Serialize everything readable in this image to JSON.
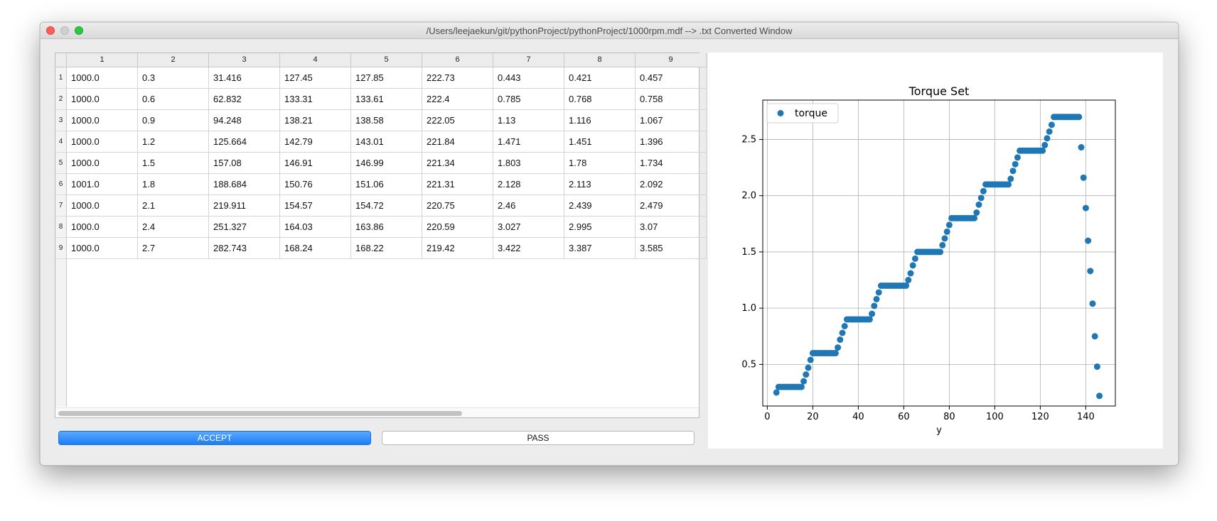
{
  "window": {
    "title": "/Users/leejaekun/git/pythonProject/pythonProject/1000rpm.mdf --> .txt Converted Window"
  },
  "table": {
    "columns": [
      "1",
      "2",
      "3",
      "4",
      "5",
      "6",
      "7",
      "8",
      "9"
    ],
    "rows": [
      {
        "label": "1",
        "cells": [
          "1000.0",
          "0.3",
          "31.416",
          "127.45",
          "127.85",
          "222.73",
          "0.443",
          "0.421",
          "0.457"
        ]
      },
      {
        "label": "2",
        "cells": [
          "1000.0",
          "0.6",
          "62.832",
          "133.31",
          "133.61",
          "222.4",
          "0.785",
          "0.768",
          "0.758"
        ]
      },
      {
        "label": "3",
        "cells": [
          "1000.0",
          "0.9",
          "94.248",
          "138.21",
          "138.58",
          "222.05",
          "1.13",
          "1.116",
          "1.067"
        ]
      },
      {
        "label": "4",
        "cells": [
          "1000.0",
          "1.2",
          "125.664",
          "142.79",
          "143.01",
          "221.84",
          "1.471",
          "1.451",
          "1.396"
        ]
      },
      {
        "label": "5",
        "cells": [
          "1000.0",
          "1.5",
          "157.08",
          "146.91",
          "146.99",
          "221.34",
          "1.803",
          "1.78",
          "1.734"
        ]
      },
      {
        "label": "6",
        "cells": [
          "1001.0",
          "1.8",
          "188.684",
          "150.76",
          "151.06",
          "221.31",
          "2.128",
          "2.113",
          "2.092"
        ]
      },
      {
        "label": "7",
        "cells": [
          "1000.0",
          "2.1",
          "219.911",
          "154.57",
          "154.72",
          "220.75",
          "2.46",
          "2.439",
          "2.479"
        ]
      },
      {
        "label": "8",
        "cells": [
          "1000.0",
          "2.4",
          "251.327",
          "164.03",
          "163.86",
          "220.59",
          "3.027",
          "2.995",
          "3.07"
        ]
      },
      {
        "label": "9",
        "cells": [
          "1000.0",
          "2.7",
          "282.743",
          "168.24",
          "168.22",
          "219.42",
          "3.422",
          "3.387",
          "3.585"
        ]
      }
    ]
  },
  "buttons": {
    "accept": "ACCEPT",
    "pass": "PASS"
  },
  "colors": {
    "accent": "#1a7ef5",
    "marker": "#1f77b4"
  },
  "chart_data": {
    "type": "scatter",
    "title": "Torque Set",
    "xlabel": "y",
    "ylabel": "",
    "xlim": [
      -2,
      153
    ],
    "ylim": [
      0.13,
      2.85
    ],
    "xticks": [
      0,
      20,
      40,
      60,
      80,
      100,
      120,
      140
    ],
    "yticks": [
      0.5,
      1.0,
      1.5,
      2.0,
      2.5
    ],
    "ytick_labels": [
      "0.5",
      "1.0",
      "1.5",
      "2.0",
      "2.5"
    ],
    "grid": true,
    "legend_position": "upper-left",
    "series": [
      {
        "name": "torque",
        "ramps": [
          {
            "x": [
              16,
              17,
              18,
              19
            ],
            "y": [
              0.35,
              0.41,
              0.47,
              0.54
            ]
          },
          {
            "x": [
              31,
              32,
              33,
              34
            ],
            "y": [
              0.65,
              0.72,
              0.78,
              0.84
            ]
          },
          {
            "x": [
              46,
              47,
              48,
              49
            ],
            "y": [
              0.95,
              1.02,
              1.08,
              1.14
            ]
          },
          {
            "x": [
              62,
              63,
              64,
              65
            ],
            "y": [
              1.25,
              1.31,
              1.38,
              1.44
            ]
          },
          {
            "x": [
              77,
              78,
              79,
              80
            ],
            "y": [
              1.56,
              1.62,
              1.68,
              1.74
            ]
          },
          {
            "x": [
              92,
              93,
              94,
              95
            ],
            "y": [
              1.85,
              1.92,
              1.98,
              2.04
            ]
          },
          {
            "x": [
              107,
              108,
              109,
              110
            ],
            "y": [
              2.15,
              2.22,
              2.28,
              2.34
            ]
          },
          {
            "x": [
              122,
              123,
              124,
              125
            ],
            "y": [
              2.45,
              2.51,
              2.57,
              2.63
            ]
          }
        ],
        "plateaus": [
          {
            "x_start": 5,
            "x_end": 15,
            "y": 0.3
          },
          {
            "x_start": 20,
            "x_end": 30,
            "y": 0.6
          },
          {
            "x_start": 35,
            "x_end": 45,
            "y": 0.9
          },
          {
            "x_start": 50,
            "x_end": 61,
            "y": 1.2
          },
          {
            "x_start": 66,
            "x_end": 76,
            "y": 1.5
          },
          {
            "x_start": 81,
            "x_end": 91,
            "y": 1.8
          },
          {
            "x_start": 96,
            "x_end": 106,
            "y": 2.1
          },
          {
            "x_start": 111,
            "x_end": 121,
            "y": 2.4
          },
          {
            "x_start": 126,
            "x_end": 137,
            "y": 2.7
          }
        ],
        "extra_points": [
          {
            "x": 4,
            "y": 0.25
          },
          {
            "x": 138,
            "y": 2.43
          },
          {
            "x": 139,
            "y": 2.16
          },
          {
            "x": 140,
            "y": 1.89
          },
          {
            "x": 141,
            "y": 1.6
          },
          {
            "x": 142,
            "y": 1.33
          },
          {
            "x": 143,
            "y": 1.04
          },
          {
            "x": 144,
            "y": 0.75
          },
          {
            "x": 145,
            "y": 0.48
          },
          {
            "x": 146,
            "y": 0.22
          }
        ]
      }
    ]
  }
}
